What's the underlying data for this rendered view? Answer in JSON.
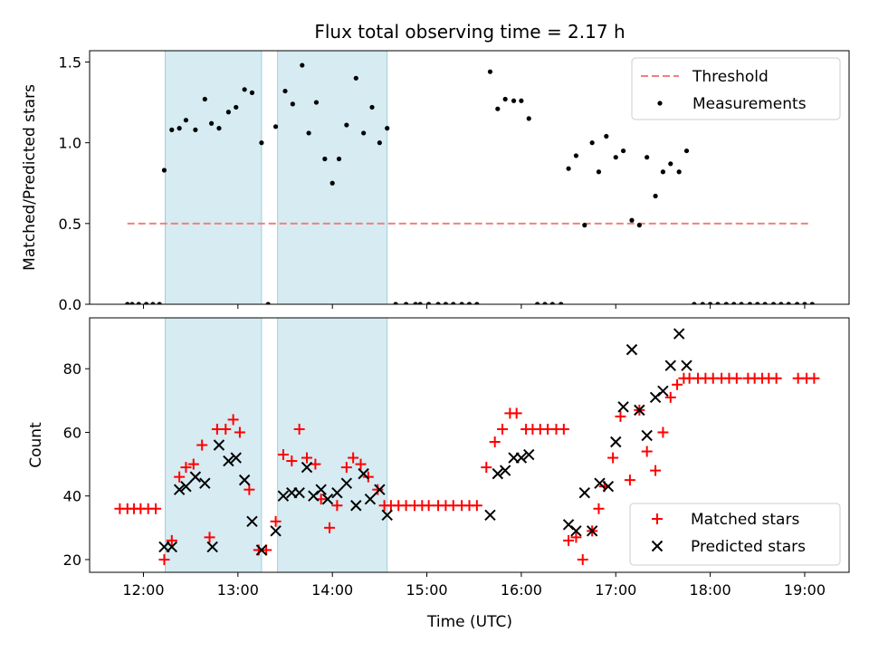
{
  "chart_data": {
    "type": "scatter",
    "title": "Flux total observing time = 2.17 h",
    "xlabel": "Time (UTC)",
    "xlim": [
      11.43,
      19.47
    ],
    "xticks": [
      {
        "value": 12,
        "label": "12:00"
      },
      {
        "value": 13,
        "label": "13:00"
      },
      {
        "value": 14,
        "label": "14:00"
      },
      {
        "value": 15,
        "label": "15:00"
      },
      {
        "value": 16,
        "label": "16:00"
      },
      {
        "value": 17,
        "label": "17:00"
      },
      {
        "value": 18,
        "label": "18:00"
      },
      {
        "value": 19,
        "label": "19:00"
      }
    ],
    "shaded_intervals": [
      [
        12.23,
        13.25
      ],
      [
        13.42,
        14.58
      ]
    ],
    "top": {
      "ylabel": "Matched/Predicted stars",
      "ylim": [
        0,
        1.57
      ],
      "yticks": [
        {
          "value": 0,
          "label": "0.0"
        },
        {
          "value": 0.5,
          "label": "0.5"
        },
        {
          "value": 1.0,
          "label": "1.0"
        },
        {
          "value": 1.5,
          "label": "1.5"
        }
      ],
      "threshold": {
        "name": "Threshold",
        "value": 0.5,
        "x_range": [
          11.83,
          19.07
        ],
        "color": "#f08080"
      },
      "measurements_name": "Measurements",
      "measurements": [
        [
          11.83,
          0
        ],
        [
          11.88,
          0
        ],
        [
          11.95,
          0
        ],
        [
          12.03,
          0
        ],
        [
          12.1,
          0
        ],
        [
          12.17,
          0
        ],
        [
          12.22,
          0.83
        ],
        [
          12.3,
          1.08
        ],
        [
          12.38,
          1.09
        ],
        [
          12.45,
          1.14
        ],
        [
          12.55,
          1.08
        ],
        [
          12.65,
          1.27
        ],
        [
          12.72,
          1.12
        ],
        [
          12.8,
          1.09
        ],
        [
          12.9,
          1.19
        ],
        [
          12.98,
          1.22
        ],
        [
          13.07,
          1.33
        ],
        [
          13.15,
          1.31
        ],
        [
          13.25,
          1.0
        ],
        [
          13.32,
          0
        ],
        [
          13.4,
          1.1
        ],
        [
          13.5,
          1.32
        ],
        [
          13.58,
          1.24
        ],
        [
          13.68,
          1.48
        ],
        [
          13.75,
          1.06
        ],
        [
          13.83,
          1.25
        ],
        [
          13.92,
          0.9
        ],
        [
          14.0,
          0.75
        ],
        [
          14.07,
          0.9
        ],
        [
          14.15,
          1.11
        ],
        [
          14.25,
          1.4
        ],
        [
          14.33,
          1.06
        ],
        [
          14.42,
          1.22
        ],
        [
          14.5,
          1.0
        ],
        [
          14.58,
          1.09
        ],
        [
          14.67,
          0
        ],
        [
          14.78,
          0
        ],
        [
          14.88,
          0
        ],
        [
          14.93,
          0
        ],
        [
          15.02,
          0
        ],
        [
          15.12,
          0
        ],
        [
          15.2,
          0
        ],
        [
          15.28,
          0
        ],
        [
          15.37,
          0
        ],
        [
          15.45,
          0
        ],
        [
          15.53,
          0
        ],
        [
          15.67,
          1.44
        ],
        [
          15.75,
          1.21
        ],
        [
          15.83,
          1.27
        ],
        [
          15.92,
          1.26
        ],
        [
          16.0,
          1.26
        ],
        [
          16.08,
          1.15
        ],
        [
          16.17,
          0
        ],
        [
          16.25,
          0
        ],
        [
          16.33,
          0
        ],
        [
          16.42,
          0
        ],
        [
          16.5,
          0.84
        ],
        [
          16.58,
          0.92
        ],
        [
          16.67,
          0.49
        ],
        [
          16.75,
          1.0
        ],
        [
          16.82,
          0.82
        ],
        [
          16.9,
          1.04
        ],
        [
          17.0,
          0.91
        ],
        [
          17.08,
          0.95
        ],
        [
          17.17,
          0.52
        ],
        [
          17.25,
          0.49
        ],
        [
          17.33,
          0.91
        ],
        [
          17.42,
          0.67
        ],
        [
          17.5,
          0.82
        ],
        [
          17.58,
          0.87
        ],
        [
          17.67,
          0.82
        ],
        [
          17.75,
          0.95
        ],
        [
          17.83,
          0
        ],
        [
          17.92,
          0
        ],
        [
          18.0,
          0
        ],
        [
          18.08,
          0
        ],
        [
          18.17,
          0
        ],
        [
          18.25,
          0
        ],
        [
          18.33,
          0
        ],
        [
          18.42,
          0
        ],
        [
          18.5,
          0
        ],
        [
          18.58,
          0
        ],
        [
          18.67,
          0
        ],
        [
          18.75,
          0
        ],
        [
          18.83,
          0
        ],
        [
          18.92,
          0
        ],
        [
          19.0,
          0
        ],
        [
          19.08,
          0
        ]
      ]
    },
    "bottom": {
      "ylabel": "Count",
      "ylim": [
        16,
        96
      ],
      "yticks": [
        {
          "value": 20,
          "label": "20"
        },
        {
          "value": 40,
          "label": "40"
        },
        {
          "value": 60,
          "label": "60"
        },
        {
          "value": 80,
          "label": "80"
        }
      ],
      "series": [
        {
          "name": "Matched stars",
          "color": "#ff0000",
          "marker": "plus",
          "points": [
            [
              11.75,
              36
            ],
            [
              11.83,
              36
            ],
            [
              11.9,
              36
            ],
            [
              11.97,
              36
            ],
            [
              12.05,
              36
            ],
            [
              12.13,
              36
            ],
            [
              12.22,
              20
            ],
            [
              12.3,
              26
            ],
            [
              12.38,
              46
            ],
            [
              12.45,
              49
            ],
            [
              12.53,
              50
            ],
            [
              12.62,
              56
            ],
            [
              12.7,
              27
            ],
            [
              12.78,
              61
            ],
            [
              12.87,
              61
            ],
            [
              12.95,
              64
            ],
            [
              13.02,
              60
            ],
            [
              13.12,
              42
            ],
            [
              13.22,
              23
            ],
            [
              13.3,
              23
            ],
            [
              13.4,
              32
            ],
            [
              13.48,
              53
            ],
            [
              13.57,
              51
            ],
            [
              13.65,
              61
            ],
            [
              13.73,
              52
            ],
            [
              13.82,
              50
            ],
            [
              13.88,
              39
            ],
            [
              13.97,
              30
            ],
            [
              14.05,
              37
            ],
            [
              14.15,
              49
            ],
            [
              14.22,
              52
            ],
            [
              14.3,
              50
            ],
            [
              14.38,
              46
            ],
            [
              14.48,
              42
            ],
            [
              14.55,
              37
            ],
            [
              14.62,
              37
            ],
            [
              14.7,
              37
            ],
            [
              14.78,
              37
            ],
            [
              14.87,
              37
            ],
            [
              14.95,
              37
            ],
            [
              15.02,
              37
            ],
            [
              15.12,
              37
            ],
            [
              15.2,
              37
            ],
            [
              15.28,
              37
            ],
            [
              15.37,
              37
            ],
            [
              15.45,
              37
            ],
            [
              15.53,
              37
            ],
            [
              15.63,
              49
            ],
            [
              15.72,
              57
            ],
            [
              15.8,
              61
            ],
            [
              15.88,
              66
            ],
            [
              15.95,
              66
            ],
            [
              16.05,
              61
            ],
            [
              16.12,
              61
            ],
            [
              16.2,
              61
            ],
            [
              16.28,
              61
            ],
            [
              16.37,
              61
            ],
            [
              16.45,
              61
            ],
            [
              16.5,
              26
            ],
            [
              16.58,
              27
            ],
            [
              16.65,
              20
            ],
            [
              16.75,
              29
            ],
            [
              16.82,
              36
            ],
            [
              16.88,
              43
            ],
            [
              16.97,
              52
            ],
            [
              17.05,
              65
            ],
            [
              17.15,
              45
            ],
            [
              17.25,
              67
            ],
            [
              17.33,
              54
            ],
            [
              17.42,
              48
            ],
            [
              17.5,
              60
            ],
            [
              17.58,
              71
            ],
            [
              17.65,
              75
            ],
            [
              17.72,
              77
            ],
            [
              17.78,
              77
            ],
            [
              17.87,
              77
            ],
            [
              17.95,
              77
            ],
            [
              18.03,
              77
            ],
            [
              18.12,
              77
            ],
            [
              18.2,
              77
            ],
            [
              18.28,
              77
            ],
            [
              18.4,
              77
            ],
            [
              18.47,
              77
            ],
            [
              18.55,
              77
            ],
            [
              18.62,
              77
            ],
            [
              18.7,
              77
            ],
            [
              18.93,
              77
            ],
            [
              19.02,
              77
            ],
            [
              19.1,
              77
            ]
          ]
        },
        {
          "name": "Predicted stars",
          "color": "#000000",
          "marker": "x",
          "points": [
            [
              12.22,
              24
            ],
            [
              12.3,
              24
            ],
            [
              12.38,
              42
            ],
            [
              12.45,
              43
            ],
            [
              12.55,
              46
            ],
            [
              12.65,
              44
            ],
            [
              12.73,
              24
            ],
            [
              12.8,
              56
            ],
            [
              12.9,
              51
            ],
            [
              12.98,
              52
            ],
            [
              13.07,
              45
            ],
            [
              13.15,
              32
            ],
            [
              13.25,
              23
            ],
            [
              13.4,
              29
            ],
            [
              13.48,
              40
            ],
            [
              13.57,
              41
            ],
            [
              13.65,
              41
            ],
            [
              13.73,
              49
            ],
            [
              13.8,
              40
            ],
            [
              13.88,
              42
            ],
            [
              13.95,
              39
            ],
            [
              14.05,
              41
            ],
            [
              14.15,
              44
            ],
            [
              14.25,
              37
            ],
            [
              14.33,
              47
            ],
            [
              14.4,
              39
            ],
            [
              14.5,
              42
            ],
            [
              14.58,
              34
            ],
            [
              15.67,
              34
            ],
            [
              15.75,
              47
            ],
            [
              15.83,
              48
            ],
            [
              15.92,
              52
            ],
            [
              16.0,
              52
            ],
            [
              16.08,
              53
            ],
            [
              16.5,
              31
            ],
            [
              16.58,
              29
            ],
            [
              16.67,
              41
            ],
            [
              16.75,
              29
            ],
            [
              16.83,
              44
            ],
            [
              16.92,
              43
            ],
            [
              17.0,
              57
            ],
            [
              17.08,
              68
            ],
            [
              17.17,
              86
            ],
            [
              17.25,
              67
            ],
            [
              17.33,
              59
            ],
            [
              17.42,
              71
            ],
            [
              17.5,
              73
            ],
            [
              17.58,
              81
            ],
            [
              17.67,
              91
            ],
            [
              17.75,
              81
            ]
          ]
        }
      ]
    }
  }
}
